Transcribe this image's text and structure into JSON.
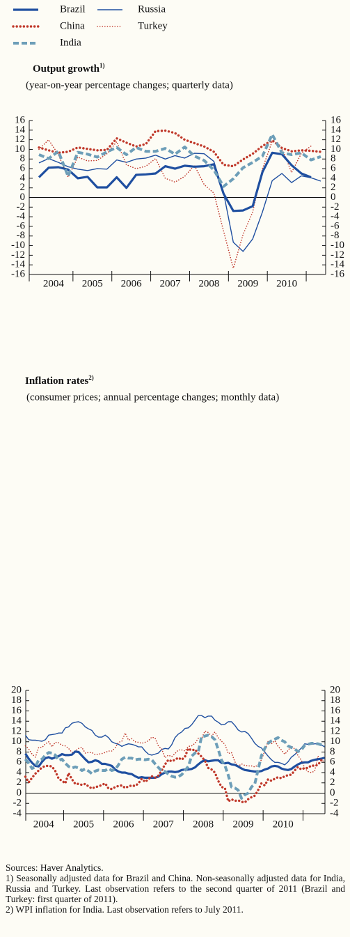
{
  "chart_data": [
    {
      "type": "line",
      "title": "Output growth",
      "title_note": "1)",
      "subtitle": "(year-on-year percentage changes; quarterly data)",
      "x": [
        "2004-Q1",
        "2004-Q2",
        "2004-Q3",
        "2004-Q4",
        "2005-Q1",
        "2005-Q2",
        "2005-Q3",
        "2005-Q4",
        "2006-Q1",
        "2006-Q2",
        "2006-Q3",
        "2006-Q4",
        "2007-Q1",
        "2007-Q2",
        "2007-Q3",
        "2007-Q4",
        "2008-Q1",
        "2008-Q2",
        "2008-Q3",
        "2008-Q4",
        "2009-Q1",
        "2009-Q2",
        "2009-Q3",
        "2009-Q4",
        "2010-Q1",
        "2010-Q2",
        "2010-Q3",
        "2010-Q4",
        "2011-Q1",
        "2011-Q2"
      ],
      "xlim": [
        2003.875,
        2011.5
      ],
      "xticks": [
        {
          "value": 2004.5,
          "label": "2004"
        },
        {
          "value": 2005.5,
          "label": "2005"
        },
        {
          "value": 2006.5,
          "label": "2006"
        },
        {
          "value": 2007.5,
          "label": "2007"
        },
        {
          "value": 2008.5,
          "label": "2008"
        },
        {
          "value": 2009.5,
          "label": "2009"
        },
        {
          "value": 2010.5,
          "label": "2010"
        }
      ],
      "xtick_marks": [
        2005,
        2006,
        2007,
        2008,
        2009,
        2010,
        2011
      ],
      "ylim": [
        -16,
        16
      ],
      "yticks": [
        -16,
        -14,
        -12,
        -10,
        -8,
        -6,
        -4,
        -2,
        0,
        2,
        4,
        6,
        8,
        10,
        12,
        14,
        16
      ],
      "zero_line": true,
      "series": [
        {
          "name": "Brazil",
          "color": "#1f4fa0",
          "dash": "solid",
          "weight": "thick",
          "values": [
            4.2,
            6.2,
            6.3,
            5.8,
            4.0,
            4.3,
            2.1,
            2.1,
            4.2,
            2.0,
            4.7,
            4.8,
            5.0,
            6.5,
            6.0,
            6.6,
            6.4,
            6.5,
            6.9,
            0.8,
            -2.8,
            -2.7,
            -1.8,
            5.3,
            9.3,
            9.0,
            6.7,
            5.0,
            4.2,
            null
          ]
        },
        {
          "name": "China",
          "color": "#c0392b",
          "dash": "dotted",
          "weight": "thick",
          "values": [
            10.4,
            9.8,
            9.3,
            9.5,
            10.4,
            10.1,
            9.8,
            9.9,
            12.3,
            11.4,
            10.6,
            11.1,
            13.8,
            13.9,
            13.4,
            12.0,
            11.3,
            10.6,
            9.5,
            6.8,
            6.5,
            7.9,
            9.1,
            10.7,
            11.9,
            10.3,
            9.6,
            9.8,
            9.7,
            9.5
          ]
        },
        {
          "name": "India",
          "color": "#6d9eb8",
          "dash": "dashed",
          "weight": "thick",
          "values": [
            8.9,
            8.1,
            9.6,
            4.4,
            9.4,
            9.0,
            8.4,
            9.5,
            10.4,
            8.9,
            10.4,
            9.6,
            9.6,
            10.2,
            9.0,
            10.5,
            8.6,
            7.7,
            5.7,
            2.3,
            3.9,
            6.2,
            7.3,
            8.6,
            13.1,
            9.3,
            8.9,
            9.3,
            7.8,
            8.5
          ]
        },
        {
          "name": "Russia",
          "color": "#1f4fa0",
          "dash": "solid",
          "weight": "thin",
          "values": [
            7.2,
            8.1,
            7.3,
            6.4,
            5.9,
            5.6,
            6.0,
            5.9,
            7.8,
            7.3,
            8.0,
            8.2,
            8.8,
            8.0,
            8.7,
            8.2,
            9.2,
            9.1,
            7.5,
            1.0,
            -9.3,
            -11.2,
            -8.6,
            -3.0,
            3.5,
            5.0,
            3.1,
            4.5,
            4.1,
            3.4
          ]
        },
        {
          "name": "Turkey",
          "color": "#c0392b",
          "dash": "dotted",
          "weight": "thin",
          "values": [
            10.0,
            12.0,
            8.9,
            4.2,
            8.4,
            7.6,
            7.7,
            9.1,
            11.6,
            6.8,
            6.0,
            6.5,
            8.1,
            4.0,
            3.2,
            4.4,
            6.7,
            2.7,
            0.9,
            -7.0,
            -14.7,
            -7.7,
            -3.0,
            6.0,
            11.7,
            10.3,
            5.2,
            9.2,
            10.7,
            null
          ]
        }
      ]
    },
    {
      "type": "line",
      "title": "Inflation rates",
      "title_note": "2)",
      "subtitle": "(consumer prices; annual percentage changes; monthly data)",
      "x": [
        "2004-01",
        "2004-02",
        "2004-03",
        "2004-04",
        "2004-05",
        "2004-06",
        "2004-07",
        "2004-08",
        "2004-09",
        "2004-10",
        "2004-11",
        "2004-12",
        "2005-01",
        "2005-02",
        "2005-03",
        "2005-04",
        "2005-05",
        "2005-06",
        "2005-07",
        "2005-08",
        "2005-09",
        "2005-10",
        "2005-11",
        "2005-12",
        "2006-01",
        "2006-02",
        "2006-03",
        "2006-04",
        "2006-05",
        "2006-06",
        "2006-07",
        "2006-08",
        "2006-09",
        "2006-10",
        "2006-11",
        "2006-12",
        "2007-01",
        "2007-02",
        "2007-03",
        "2007-04",
        "2007-05",
        "2007-06",
        "2007-07",
        "2007-08",
        "2007-09",
        "2007-10",
        "2007-11",
        "2007-12",
        "2008-01",
        "2008-02",
        "2008-03",
        "2008-04",
        "2008-05",
        "2008-06",
        "2008-07",
        "2008-08",
        "2008-09",
        "2008-10",
        "2008-11",
        "2008-12",
        "2009-01",
        "2009-02",
        "2009-03",
        "2009-04",
        "2009-05",
        "2009-06",
        "2009-07",
        "2009-08",
        "2009-09",
        "2009-10",
        "2009-11",
        "2009-12",
        "2010-01",
        "2010-02",
        "2010-03",
        "2010-04",
        "2010-05",
        "2010-06",
        "2010-07",
        "2010-08",
        "2010-09",
        "2010-10",
        "2010-11",
        "2010-12",
        "2011-01",
        "2011-02",
        "2011-03",
        "2011-04",
        "2011-05",
        "2011-06",
        "2011-07"
      ],
      "xlim": [
        2004.05,
        2011.55
      ],
      "xticks": [
        {
          "value": 2004.5,
          "label": "2004"
        },
        {
          "value": 2005.5,
          "label": "2005"
        },
        {
          "value": 2006.5,
          "label": "2006"
        },
        {
          "value": 2007.5,
          "label": "2007"
        },
        {
          "value": 2008.5,
          "label": "2008"
        },
        {
          "value": 2009.5,
          "label": "2009"
        },
        {
          "value": 2010.5,
          "label": "2010"
        }
      ],
      "xtick_marks": [
        2005,
        2006,
        2007,
        2008,
        2009,
        2010,
        2011
      ],
      "ylim": [
        -4,
        20
      ],
      "yticks": [
        -4,
        -2,
        0,
        2,
        4,
        6,
        8,
        10,
        12,
        14,
        16,
        18,
        20
      ],
      "zero_line": true,
      "series": [
        {
          "name": "Brazil",
          "color": "#1f4fa0",
          "dash": "solid",
          "weight": "thick",
          "values": [
            7.7,
            6.7,
            5.9,
            5.3,
            5.2,
            6.1,
            6.8,
            7.0,
            6.7,
            7.0,
            7.2,
            7.6,
            7.4,
            7.4,
            7.5,
            8.1,
            8.0,
            7.3,
            6.6,
            6.0,
            6.1,
            6.4,
            6.2,
            5.7,
            5.7,
            5.5,
            5.3,
            4.6,
            4.2,
            4.0,
            4.0,
            3.8,
            3.7,
            3.3,
            3.0,
            3.1,
            3.0,
            3.0,
            3.0,
            3.0,
            3.2,
            3.7,
            4.0,
            4.2,
            4.2,
            4.1,
            4.2,
            4.5,
            4.6,
            4.6,
            4.7,
            5.0,
            5.6,
            6.1,
            6.4,
            6.2,
            6.3,
            6.4,
            6.4,
            5.9,
            5.8,
            5.9,
            5.6,
            5.5,
            5.2,
            4.8,
            4.5,
            4.4,
            4.3,
            4.2,
            4.2,
            4.3,
            4.6,
            4.8,
            5.2,
            5.3,
            5.2,
            4.8,
            4.6,
            4.5,
            4.7,
            5.2,
            5.6,
            5.9,
            6.0,
            6.0,
            6.3,
            6.5,
            6.6,
            6.7,
            6.9
          ]
        },
        {
          "name": "China",
          "color": "#c0392b",
          "dash": "dotted",
          "weight": "thick",
          "values": [
            3.2,
            2.1,
            3.0,
            3.8,
            4.4,
            5.0,
            5.3,
            5.3,
            5.2,
            4.3,
            2.8,
            2.4,
            1.9,
            3.9,
            2.7,
            1.8,
            1.8,
            1.6,
            1.8,
            1.3,
            0.9,
            1.2,
            1.3,
            1.6,
            1.9,
            0.9,
            0.8,
            1.2,
            1.4,
            1.5,
            1.0,
            1.3,
            1.5,
            1.4,
            1.9,
            2.8,
            2.2,
            2.7,
            3.3,
            3.0,
            3.4,
            4.4,
            5.6,
            6.5,
            6.2,
            6.5,
            6.9,
            6.5,
            7.1,
            8.7,
            8.3,
            8.5,
            7.7,
            7.1,
            6.3,
            4.9,
            4.6,
            4.0,
            2.4,
            1.2,
            1.0,
            -1.6,
            -1.2,
            -1.5,
            -1.4,
            -1.7,
            -1.8,
            -1.2,
            -0.8,
            -0.5,
            0.6,
            1.9,
            1.5,
            2.7,
            2.4,
            2.8,
            3.1,
            2.9,
            3.3,
            3.5,
            3.6,
            4.4,
            5.1,
            4.6,
            4.9,
            4.9,
            5.4,
            5.3,
            5.5,
            6.4,
            6.5
          ]
        },
        {
          "name": "India",
          "color": "#6d9eb8",
          "dash": "dashed",
          "weight": "thick",
          "values": [
            6.6,
            5.8,
            4.8,
            5.1,
            6.5,
            6.6,
            7.4,
            7.9,
            7.8,
            7.4,
            6.4,
            6.6,
            5.8,
            5.2,
            4.9,
            5.1,
            4.9,
            4.4,
            4.7,
            4.3,
            3.8,
            4.3,
            4.5,
            4.4,
            4.4,
            4.8,
            4.4,
            4.6,
            5.5,
            6.6,
            7.0,
            6.8,
            6.8,
            6.5,
            6.6,
            6.6,
            6.5,
            6.6,
            6.5,
            5.7,
            5.0,
            4.3,
            4.2,
            3.7,
            3.3,
            3.1,
            3.2,
            3.6,
            4.4,
            5.2,
            7.2,
            7.8,
            8.1,
            11.0,
            11.1,
            11.3,
            11.0,
            10.4,
            8.5,
            6.4,
            5.4,
            3.5,
            1.2,
            1.0,
            0.6,
            -1.0,
            -0.3,
            0.0,
            1.2,
            1.8,
            4.6,
            7.3,
            8.7,
            9.7,
            10.2,
            10.5,
            10.8,
            10.3,
            10.0,
            9.2,
            8.9,
            8.6,
            8.1,
            8.4,
            9.3,
            9.5,
            9.7,
            9.7,
            9.6,
            9.4,
            9.2
          ]
        },
        {
          "name": "Russia",
          "color": "#1f4fa0",
          "dash": "solid",
          "weight": "thin",
          "values": [
            11.3,
            10.4,
            10.3,
            10.3,
            10.2,
            10.1,
            10.4,
            11.3,
            11.4,
            11.5,
            11.7,
            11.7,
            12.7,
            12.9,
            13.6,
            13.8,
            13.9,
            13.6,
            12.9,
            12.5,
            12.2,
            11.3,
            10.9,
            10.9,
            11.3,
            10.8,
            10.0,
            9.7,
            9.5,
            9.1,
            9.4,
            9.6,
            9.5,
            9.3,
            9.0,
            9.0,
            8.2,
            7.6,
            7.4,
            7.6,
            7.8,
            8.5,
            8.7,
            8.6,
            9.4,
            10.8,
            11.5,
            11.9,
            12.6,
            12.7,
            13.3,
            14.2,
            15.1,
            15.1,
            14.7,
            15.0,
            15.0,
            14.2,
            13.8,
            13.3,
            13.4,
            13.9,
            13.9,
            13.2,
            12.3,
            11.9,
            12.0,
            11.6,
            10.7,
            9.7,
            9.1,
            8.8,
            8.0,
            7.2,
            6.5,
            6.0,
            6.0,
            5.8,
            5.5,
            6.1,
            7.0,
            7.5,
            8.1,
            8.8,
            9.6,
            9.5,
            9.5,
            9.6,
            9.6,
            9.4,
            9.0
          ]
        },
        {
          "name": "Turkey",
          "color": "#c0392b",
          "dash": "dotted",
          "weight": "thin",
          "values": [
            9.2,
            8.6,
            7.6,
            7.0,
            8.9,
            8.9,
            9.6,
            10.0,
            9.0,
            9.9,
            9.8,
            9.3,
            9.2,
            8.7,
            7.9,
            8.2,
            8.7,
            8.9,
            7.8,
            7.9,
            7.9,
            7.5,
            7.6,
            7.7,
            7.9,
            8.2,
            8.2,
            8.8,
            9.9,
            10.1,
            11.7,
            10.3,
            10.6,
            10.0,
            9.9,
            9.7,
            9.9,
            10.2,
            10.9,
            10.7,
            9.2,
            8.6,
            6.9,
            7.4,
            7.1,
            7.7,
            8.4,
            8.4,
            8.2,
            9.1,
            9.2,
            9.7,
            10.7,
            10.6,
            12.1,
            11.8,
            11.1,
            11.9,
            10.8,
            10.1,
            9.5,
            7.7,
            7.9,
            6.1,
            5.2,
            5.7,
            5.4,
            5.3,
            5.3,
            5.1,
            5.5,
            6.5,
            8.2,
            10.1,
            9.6,
            10.2,
            9.1,
            8.4,
            7.6,
            8.3,
            9.2,
            8.6,
            7.3,
            6.4,
            4.9,
            4.2,
            4.0,
            4.3,
            7.2,
            6.2,
            6.3
          ]
        }
      ]
    }
  ],
  "footer": {
    "sources": "Sources: Haver Analytics.",
    "notes": [
      "1) Seasonally adjusted data for Brazil and China. Non-seasonally adjusted data for India, Russia and Turkey. Last observation refers to the second quarter of 2011 (Brazil and Turkey: first quarter of 2011).",
      "2) WPI inflation for India. Last observation refers to July 2011."
    ]
  }
}
